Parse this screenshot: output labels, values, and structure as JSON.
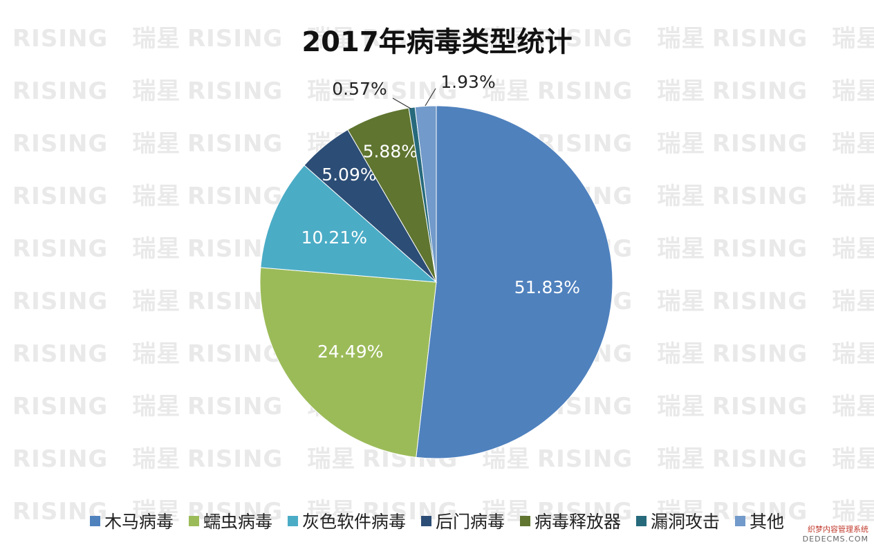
{
  "watermark": {
    "latin": "RISING",
    "cjk": "瑞星"
  },
  "chart_data": {
    "type": "pie",
    "title": "2017年病毒类型统计",
    "legend_position": "bottom",
    "start_angle_deg": 0,
    "direction": "clockwise",
    "slices": [
      {
        "name": "木马病毒",
        "value": 51.83,
        "label": "51.83%",
        "color": "#4F81BD",
        "label_color": "#ffffff",
        "label_outside": false
      },
      {
        "name": "蠕虫病毒",
        "value": 24.49,
        "label": "24.49%",
        "color": "#9BBB59",
        "label_color": "#ffffff",
        "label_outside": false
      },
      {
        "name": "灰色软件病毒",
        "value": 10.21,
        "label": "10.21%",
        "color": "#4BACC6",
        "label_color": "#ffffff",
        "label_outside": false
      },
      {
        "name": "后门病毒",
        "value": 5.09,
        "label": "5.09%",
        "color": "#2C4D75",
        "label_color": "#ffffff",
        "label_outside": false
      },
      {
        "name": "病毒释放器",
        "value": 5.88,
        "label": "5.88%",
        "color": "#5F7530",
        "label_color": "#ffffff",
        "label_outside": false
      },
      {
        "name": "漏洞攻击",
        "value": 0.57,
        "label": "0.57%",
        "color": "#276A7C",
        "label_color": "#222222",
        "label_outside": true
      },
      {
        "name": "其他",
        "value": 1.93,
        "label": "1.93%",
        "color": "#729ACA",
        "label_color": "#222222",
        "label_outside": true
      }
    ]
  },
  "footer": {
    "line1": "织梦内容管理系统",
    "line2": "DEDECMS.COM"
  }
}
